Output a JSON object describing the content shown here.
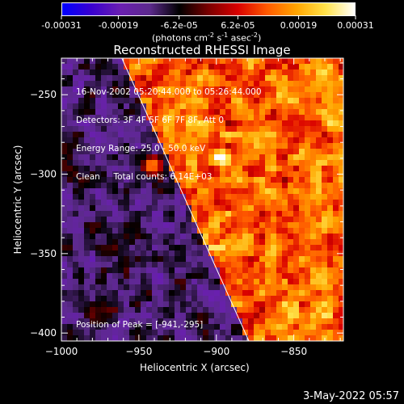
{
  "colorbar": {
    "ticks": [
      "-0.00031",
      "-0.00019",
      "-6.2e-05",
      "6.2e-05",
      "0.00019",
      "0.00031"
    ],
    "units": "(photons cm",
    "units_exp1": "-2",
    "units_mid": " s",
    "units_exp2": "-1",
    "units_mid2": " asec",
    "units_exp3": "-2",
    "units_end": ")",
    "gradient_colors": [
      "#0000ff",
      "#3a00d0",
      "#6a1fb0",
      "#5c2a8c",
      "#000000",
      "#7a0000",
      "#d80000",
      "#ff5a00",
      "#ffa500",
      "#ffe24a",
      "#ffffff"
    ]
  },
  "chart_data": {
    "type": "heatmap",
    "title": "Reconstructed RHESSI Image",
    "xlabel": "Heliocentric X (arcsec)",
    "ylabel": "Heliocentric Y (arcsec)",
    "xlim": [
      -1000,
      -818
    ],
    "ylim": [
      -405,
      -227
    ],
    "x_ticks": [
      -1000,
      -950,
      -900,
      -850
    ],
    "y_ticks": [
      -250,
      -300,
      -350,
      -400
    ],
    "x_tick_labels": [
      "−1000",
      "−950",
      "−900",
      "−850"
    ],
    "y_tick_labels": [
      "−250",
      "−300",
      "−350",
      "−400"
    ],
    "colorbar_range": [
      -0.00031,
      0.00031
    ],
    "peak": [
      -941,
      -295
    ],
    "limb_line": [
      [
        -961,
        -227
      ],
      [
        -879,
        -405
      ]
    ],
    "annotations": {
      "line1": "16-Nov-2002 05:20:44.000 to 05:26:44.000",
      "line2": "Detectors: 3F 4F 5F 6F 7F 8F, Att 0",
      "line3": "Energy Range: 25.0 - 50.0 keV",
      "line4": "Clean     Total counts: 6.14E+03",
      "peak_text": "Position of Peak = [-941,-295]"
    }
  },
  "footer": {
    "timestamp": "3-May-2022 05:57"
  }
}
